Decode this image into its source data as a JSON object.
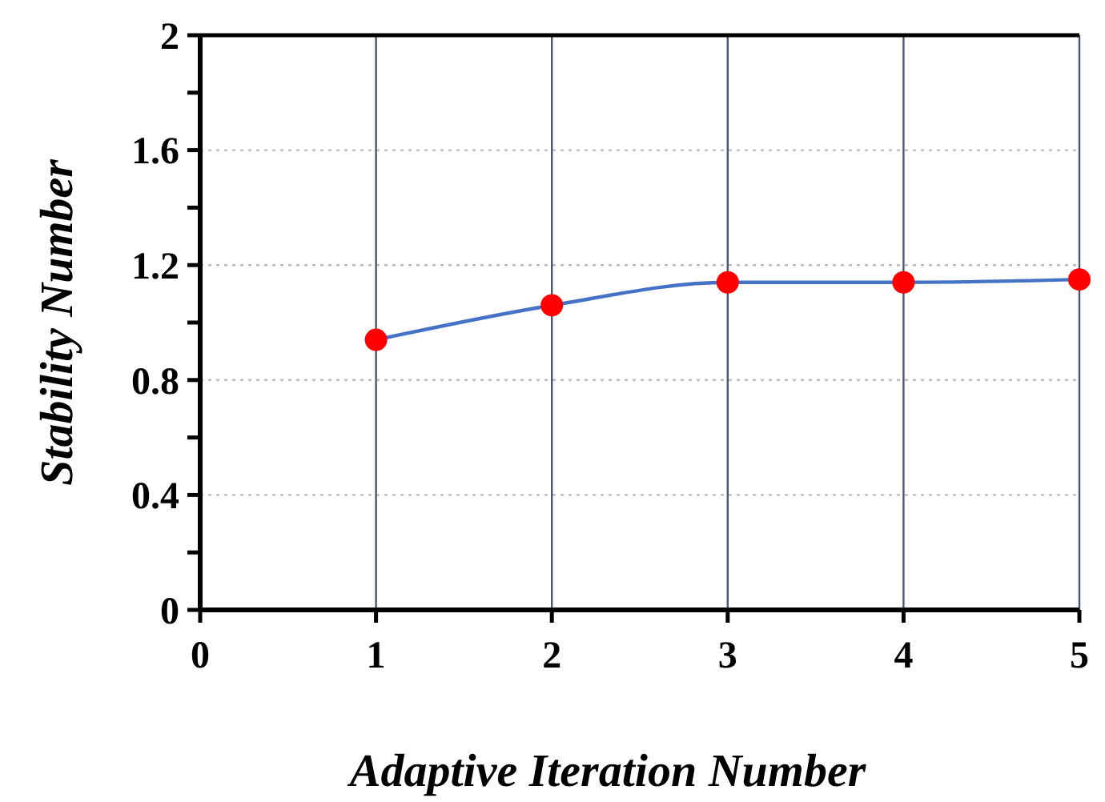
{
  "chart_data": {
    "type": "line",
    "xlabel": "Adaptive Iteration Number",
    "ylabel": "Stability Number",
    "x": [
      1,
      2,
      3,
      4,
      5
    ],
    "series": [
      {
        "color": "#4472c4",
        "values": [
          0.94,
          1.06,
          1.14,
          1.14,
          1.15
        ]
      }
    ],
    "marker": "circle",
    "line_style": "solid",
    "grid": true,
    "xlim": [
      0,
      5
    ],
    "xticks": [
      0,
      1,
      2,
      3,
      4,
      5
    ],
    "ylim": [
      0,
      2
    ],
    "yticks": [
      0,
      {
        "value": 0.2,
        "label": null
      },
      0.4,
      {
        "value": 0.6,
        "label": null
      },
      0.8,
      {
        "value": 1.0,
        "label": null
      },
      1.2,
      {
        "value": 1.4,
        "label": null
      },
      1.6,
      {
        "value": 1.8,
        "label": null
      },
      2
    ]
  }
}
